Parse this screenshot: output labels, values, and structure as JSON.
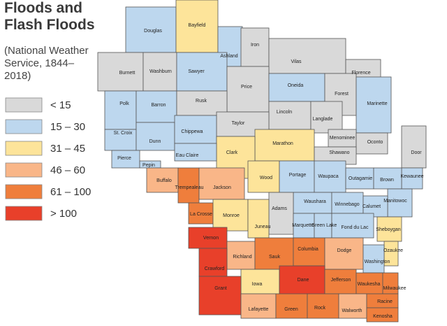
{
  "title": "Floods and Flash Floods",
  "subtitle": "(National Weather Service, 1844–2018)",
  "legend": [
    {
      "label": "< 15",
      "color": "#d9d9d9"
    },
    {
      "label": "15 – 30",
      "color": "#bdd7ee"
    },
    {
      "label": "31 – 45",
      "color": "#fde49a"
    },
    {
      "label": "46 – 60",
      "color": "#f9b688"
    },
    {
      "label": "61 – 100",
      "color": "#ef7e3c"
    },
    {
      "label": "> 100",
      "color": "#e8402a"
    }
  ],
  "counties": [
    {
      "name": "Douglas",
      "color": "#bdd7ee"
    },
    {
      "name": "Bayfield",
      "color": "#fde49a"
    },
    {
      "name": "Ashland",
      "color": "#bdd7ee"
    },
    {
      "name": "Iron",
      "color": "#d9d9d9"
    },
    {
      "name": "Vilas",
      "color": "#d9d9d9"
    },
    {
      "name": "Florence",
      "color": "#d9d9d9"
    },
    {
      "name": "Burnett",
      "color": "#d9d9d9"
    },
    {
      "name": "Washburn",
      "color": "#d9d9d9"
    },
    {
      "name": "Sawyer",
      "color": "#bdd7ee"
    },
    {
      "name": "Price",
      "color": "#d9d9d9"
    },
    {
      "name": "Oneida",
      "color": "#bdd7ee"
    },
    {
      "name": "Forest",
      "color": "#d9d9d9"
    },
    {
      "name": "Marinette",
      "color": "#bdd7ee"
    },
    {
      "name": "Polk",
      "color": "#bdd7ee"
    },
    {
      "name": "Barron",
      "color": "#bdd7ee"
    },
    {
      "name": "Rusk",
      "color": "#d9d9d9"
    },
    {
      "name": "Lincoln",
      "color": "#d9d9d9"
    },
    {
      "name": "Langlade",
      "color": "#d9d9d9"
    },
    {
      "name": "Taylor",
      "color": "#d9d9d9"
    },
    {
      "name": "St. Croix",
      "color": "#bdd7ee"
    },
    {
      "name": "Dunn",
      "color": "#bdd7ee"
    },
    {
      "name": "Chippewa",
      "color": "#bdd7ee"
    },
    {
      "name": "Menominee",
      "color": "#d9d9d9"
    },
    {
      "name": "Oconto",
      "color": "#d9d9d9"
    },
    {
      "name": "Door",
      "color": "#d9d9d9"
    },
    {
      "name": "Marathon",
      "color": "#fde49a"
    },
    {
      "name": "Clark",
      "color": "#fde49a"
    },
    {
      "name": "Shawano",
      "color": "#d9d9d9"
    },
    {
      "name": "Pierce",
      "color": "#bdd7ee"
    },
    {
      "name": "Eau Claire",
      "color": "#bdd7ee"
    },
    {
      "name": "Pepin",
      "color": "#bdd7ee"
    },
    {
      "name": "Kewaunee",
      "color": "#bdd7ee"
    },
    {
      "name": "Buffalo",
      "color": "#f9b688"
    },
    {
      "name": "Trempealeau",
      "color": "#ef7e3c"
    },
    {
      "name": "Jackson",
      "color": "#f9b688"
    },
    {
      "name": "Wood",
      "color": "#fde49a"
    },
    {
      "name": "Portage",
      "color": "#bdd7ee"
    },
    {
      "name": "Waupaca",
      "color": "#bdd7ee"
    },
    {
      "name": "Outagamie",
      "color": "#bdd7ee"
    },
    {
      "name": "Brown",
      "color": "#bdd7ee"
    },
    {
      "name": "Manitowoc",
      "color": "#bdd7ee"
    },
    {
      "name": "Waushara",
      "color": "#bdd7ee"
    },
    {
      "name": "Winnebago",
      "color": "#bdd7ee"
    },
    {
      "name": "Calumet",
      "color": "#bdd7ee"
    },
    {
      "name": "Adams",
      "color": "#d9d9d9"
    },
    {
      "name": "La Crosse",
      "color": "#ef7e3c"
    },
    {
      "name": "Monroe",
      "color": "#fde49a"
    },
    {
      "name": "Juneau",
      "color": "#fde49a"
    },
    {
      "name": "Marquette",
      "color": "#bdd7ee"
    },
    {
      "name": "Green Lake",
      "color": "#bdd7ee"
    },
    {
      "name": "Fond du Lac",
      "color": "#bdd7ee"
    },
    {
      "name": "Sheboygan",
      "color": "#fde49a"
    },
    {
      "name": "Vernon",
      "color": "#e8402a"
    },
    {
      "name": "Richland",
      "color": "#f9b688"
    },
    {
      "name": "Sauk",
      "color": "#ef7e3c"
    },
    {
      "name": "Columbia",
      "color": "#ef7e3c"
    },
    {
      "name": "Dodge",
      "color": "#f9b688"
    },
    {
      "name": "Ozaukee",
      "color": "#fde49a"
    },
    {
      "name": "Washington",
      "color": "#bdd7ee"
    },
    {
      "name": "Crawford",
      "color": "#e8402a"
    },
    {
      "name": "Iowa",
      "color": "#fde49a"
    },
    {
      "name": "Dane",
      "color": "#e8402a"
    },
    {
      "name": "Jefferson",
      "color": "#ef7e3c"
    },
    {
      "name": "Waukesha",
      "color": "#ef7e3c"
    },
    {
      "name": "Milwaukee",
      "color": "#ef7e3c"
    },
    {
      "name": "Grant",
      "color": "#e8402a"
    },
    {
      "name": "Lafayette",
      "color": "#f9b688"
    },
    {
      "name": "Green",
      "color": "#ef7e3c"
    },
    {
      "name": "Rock",
      "color": "#ef7e3c"
    },
    {
      "name": "Walworth",
      "color": "#f9b688"
    },
    {
      "name": "Racine",
      "color": "#ef7e3c"
    },
    {
      "name": "Kenosha",
      "color": "#ef7e3c"
    }
  ]
}
